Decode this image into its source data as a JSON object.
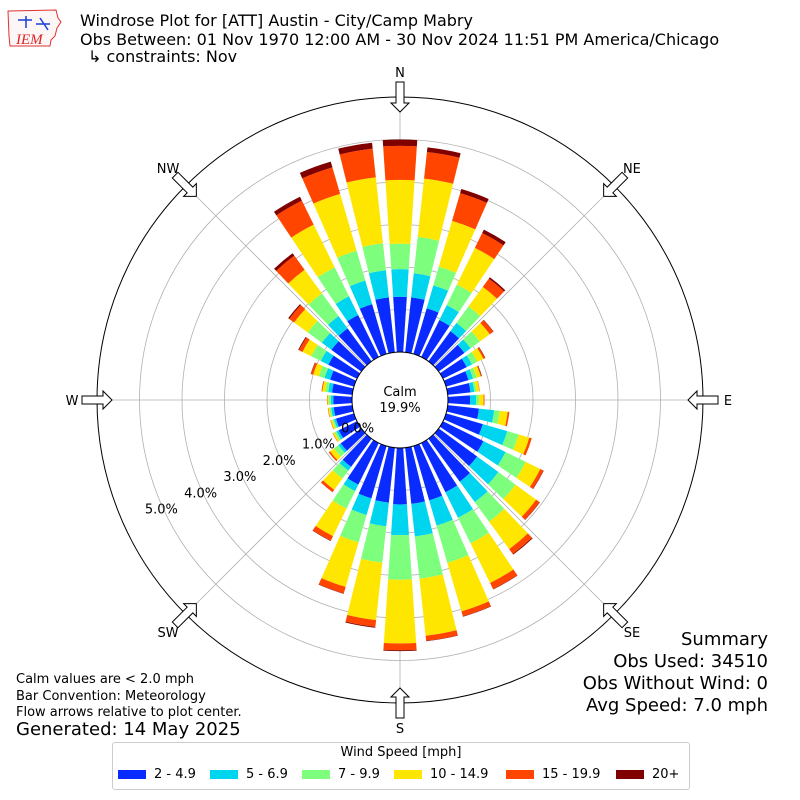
{
  "header": {
    "title_line1": "Windrose Plot for [ATT] Austin - City/Camp Mabry",
    "title_line2": "Obs Between: 01 Nov 1970 12:00 AM - 30 Nov 2024 11:51 PM America/Chicago",
    "title_line3": "↳ constraints: Nov",
    "logo_text": "IEM"
  },
  "notes": {
    "calm_def": "Calm values are < 2.0 mph",
    "convention": "Bar Convention: Meteorology",
    "flow": "Flow arrows relative to plot center.",
    "generated": "Generated: 14 May 2025"
  },
  "summary": {
    "title": "Summary",
    "obs_used": "Obs Used: 34510",
    "obs_without_wind": "Obs Without Wind: 0",
    "avg_speed": "Avg Speed: 7.0 mph"
  },
  "legend": {
    "title": "Wind Speed [mph]",
    "items": [
      {
        "label": "2 - 4.9",
        "color": "#0a2bff"
      },
      {
        "label": "5 - 6.9",
        "color": "#00d5f0"
      },
      {
        "label": "7 - 9.9",
        "color": "#7dff7d"
      },
      {
        "label": "10 - 14.9",
        "color": "#ffe600"
      },
      {
        "label": "15 - 19.9",
        "color": "#ff4500"
      },
      {
        "label": "20+",
        "color": "#800000"
      }
    ]
  },
  "chart_data": {
    "type": "windrose",
    "calm_label": "Calm",
    "calm_value": "19.9%",
    "rlim": [
      0,
      6.0
    ],
    "radial_ticks": [
      {
        "value": 0,
        "label": "0.0%"
      },
      {
        "value": 1,
        "label": "1.0%"
      },
      {
        "value": 2,
        "label": "2.0%"
      },
      {
        "value": 3,
        "label": "3.0%"
      },
      {
        "value": 4,
        "label": "4.0%"
      },
      {
        "value": 5,
        "label": "5.0%"
      }
    ],
    "direction_labels": [
      "N",
      "NE",
      "E",
      "SE",
      "S",
      "SW",
      "W",
      "NW"
    ],
    "direction_angles": [
      0,
      45,
      90,
      135,
      180,
      225,
      270,
      315
    ],
    "bins": [
      "2 - 4.9",
      "5 - 6.9",
      "7 - 9.9",
      "10 - 14.9",
      "15 - 19.9",
      "20+"
    ],
    "directions": [
      0,
      10,
      20,
      30,
      40,
      50,
      60,
      70,
      80,
      90,
      100,
      110,
      120,
      130,
      140,
      150,
      160,
      170,
      180,
      190,
      200,
      210,
      220,
      230,
      240,
      250,
      260,
      270,
      280,
      290,
      300,
      310,
      320,
      330,
      340,
      350
    ],
    "cumulative": [
      [
        1.3,
        1.95,
        2.55,
        4.05,
        4.85,
        5.0
      ],
      [
        1.3,
        1.87,
        2.73,
        4.11,
        4.74,
        4.85
      ],
      [
        1.12,
        1.68,
        2.14,
        3.26,
        3.94,
        4.04
      ],
      [
        0.97,
        1.36,
        1.9,
        2.86,
        3.25,
        3.34
      ],
      [
        0.88,
        1.12,
        1.6,
        2.17,
        2.41,
        2.45
      ],
      [
        0.75,
        0.93,
        1.2,
        1.49,
        1.59,
        1.6
      ],
      [
        0.62,
        0.76,
        0.9,
        1.06,
        1.1,
        1.11
      ],
      [
        0.55,
        0.66,
        0.75,
        0.85,
        0.87,
        0.88
      ],
      [
        0.54,
        0.63,
        0.68,
        0.75,
        0.76,
        0.76
      ],
      [
        0.52,
        0.66,
        0.73,
        0.84,
        0.86,
        0.86
      ],
      [
        0.74,
        1.1,
        1.23,
        1.42,
        1.46,
        1.46
      ],
      [
        0.9,
        1.5,
        1.78,
        2.04,
        2.1,
        2.1
      ],
      [
        1.06,
        1.64,
        2.17,
        2.55,
        2.63,
        2.64
      ],
      [
        1.12,
        1.74,
        2.24,
        2.84,
        2.94,
        2.95
      ],
      [
        1.25,
        1.85,
        2.42,
        3.22,
        3.36,
        3.38
      ],
      [
        1.29,
        1.96,
        2.63,
        3.67,
        3.83,
        3.84
      ],
      [
        1.33,
        1.95,
        2.86,
        4.05,
        4.17,
        4.18
      ],
      [
        1.33,
        2.1,
        3.1,
        4.45,
        4.57,
        4.58
      ],
      [
        1.33,
        2.05,
        3.1,
        4.6,
        4.76,
        4.78
      ],
      [
        1.3,
        1.86,
        2.72,
        4.08,
        4.24,
        4.26
      ],
      [
        1.28,
        1.69,
        2.36,
        3.45,
        3.61,
        3.62
      ],
      [
        1.09,
        1.26,
        1.72,
        2.44,
        2.56,
        2.57
      ],
      [
        0.82,
        0.93,
        1.16,
        1.49,
        1.56,
        1.56
      ],
      [
        0.6,
        0.67,
        0.8,
        0.91,
        0.95,
        0.95
      ],
      [
        0.48,
        0.54,
        0.59,
        0.63,
        0.64,
        0.64
      ],
      [
        0.44,
        0.49,
        0.53,
        0.57,
        0.58,
        0.58
      ],
      [
        0.44,
        0.5,
        0.54,
        0.57,
        0.58,
        0.58
      ],
      [
        0.44,
        0.5,
        0.55,
        0.58,
        0.59,
        0.59
      ],
      [
        0.48,
        0.57,
        0.64,
        0.71,
        0.73,
        0.73
      ],
      [
        0.58,
        0.72,
        0.86,
        1.0,
        1.05,
        1.06
      ],
      [
        0.75,
        0.95,
        1.2,
        1.43,
        1.52,
        1.54
      ],
      [
        0.87,
        1.15,
        1.56,
        1.96,
        2.1,
        2.13
      ],
      [
        0.96,
        1.32,
        1.98,
        2.67,
        3.08,
        3.15
      ],
      [
        1.1,
        1.59,
        2.35,
        3.47,
        4.1,
        4.2
      ],
      [
        1.22,
        1.8,
        2.53,
        3.92,
        4.57,
        4.71
      ],
      [
        1.3,
        1.94,
        2.58,
        4.14,
        4.82,
        4.96
      ]
    ]
  }
}
